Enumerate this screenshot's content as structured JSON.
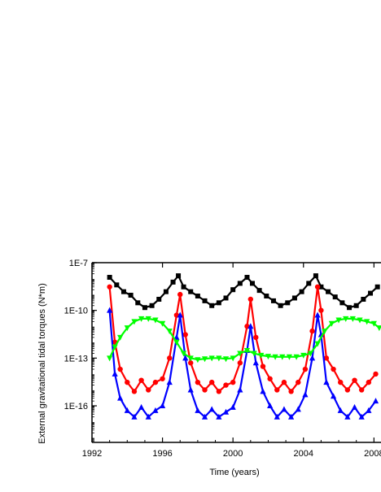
{
  "chart_data": {
    "type": "scatter",
    "xlabel": "Time (years)",
    "ylabel": "External gravitational tidal torques (N*m)",
    "xlim": [
      1992,
      2008.4
    ],
    "ylim_log10": [
      -18.3,
      -7
    ],
    "y_scale": "log",
    "x_ticks": [
      1992,
      1996,
      2000,
      2004,
      2008
    ],
    "x_tick_labels": [
      "1992",
      "1996",
      "2000",
      "2004",
      "2008"
    ],
    "y_ticks": [
      1e-16,
      1e-13,
      1e-10,
      1e-07
    ],
    "y_tick_labels": [
      "1E-16",
      "1E-13",
      "1E-10",
      "1E-7"
    ],
    "grid": false,
    "legend": "none",
    "series": [
      {
        "color": "#000000",
        "marker": "square",
        "x": [
          1993.0,
          1993.4,
          1993.8,
          1994.2,
          1994.6,
          1995.0,
          1995.4,
          1995.8,
          1996.2,
          1996.6,
          1996.9,
          1997.2,
          1997.6,
          1998.0,
          1998.4,
          1998.8,
          1999.2,
          1999.6,
          2000.0,
          2000.4,
          2000.8,
          2001.1,
          2001.5,
          2001.9,
          2002.3,
          2002.7,
          2003.1,
          2003.5,
          2003.9,
          2004.3,
          2004.7,
          2005.0,
          2005.4,
          2005.8,
          2006.2,
          2006.6,
          2007.0,
          2007.4,
          2007.8,
          2008.2
        ],
        "y": [
          1.2e-08,
          4e-09,
          1.5e-09,
          9e-10,
          3e-10,
          1.5e-10,
          2e-10,
          5e-10,
          1.5e-09,
          6e-09,
          1.5e-08,
          3e-09,
          1.5e-09,
          8e-10,
          4e-10,
          2e-10,
          3e-10,
          6e-10,
          2e-09,
          5e-09,
          1.2e-08,
          5e-09,
          1.8e-09,
          8e-10,
          4e-10,
          2e-10,
          3e-10,
          6e-10,
          1.5e-09,
          5e-09,
          1.5e-08,
          3e-09,
          1.5e-09,
          7e-10,
          3e-10,
          1.5e-10,
          2e-10,
          5e-10,
          1.2e-09,
          3e-09
        ]
      },
      {
        "color": "#ff0000",
        "marker": "circle",
        "x": [
          1993.0,
          1993.3,
          1993.6,
          1994.0,
          1994.4,
          1994.8,
          1995.2,
          1995.6,
          1996.0,
          1996.4,
          1996.8,
          1997.0,
          1997.3,
          1997.6,
          1998.0,
          1998.4,
          1998.8,
          1999.2,
          1999.6,
          2000.0,
          2000.4,
          2000.8,
          2001.0,
          2001.3,
          2001.7,
          2002.1,
          2002.5,
          2002.9,
          2003.3,
          2003.7,
          2004.1,
          2004.5,
          2004.8,
          2005.0,
          2005.3,
          2005.7,
          2006.1,
          2006.5,
          2006.9,
          2007.3,
          2007.7,
          2008.1
        ],
        "y": [
          3e-09,
          1e-12,
          2e-14,
          3e-15,
          8e-16,
          4e-15,
          1e-15,
          3e-15,
          5e-15,
          1e-13,
          5e-11,
          1e-09,
          3e-12,
          5e-14,
          3e-15,
          1e-15,
          3e-15,
          8e-16,
          2e-15,
          3e-15,
          5e-14,
          1e-11,
          5e-10,
          2e-12,
          3e-14,
          5e-15,
          1e-15,
          3e-15,
          8e-16,
          3e-15,
          2e-14,
          5e-12,
          3e-09,
          1e-10,
          1e-13,
          2e-14,
          3e-15,
          1e-15,
          4e-15,
          1e-15,
          3e-15,
          1e-14
        ]
      },
      {
        "color": "#0000ff",
        "marker": "triangle",
        "x": [
          1993.0,
          1993.3,
          1993.6,
          1994.0,
          1994.4,
          1994.8,
          1995.2,
          1995.6,
          1996.0,
          1996.4,
          1996.8,
          1997.0,
          1997.3,
          1997.6,
          1998.0,
          1998.4,
          1998.8,
          1999.2,
          1999.6,
          2000.0,
          2000.4,
          2000.8,
          2001.0,
          2001.3,
          2001.7,
          2002.1,
          2002.5,
          2002.9,
          2003.3,
          2003.7,
          2004.1,
          2004.5,
          2004.8,
          2005.0,
          2005.3,
          2005.7,
          2006.1,
          2006.5,
          2006.9,
          2007.3,
          2007.7,
          2008.1
        ],
        "y": [
          1e-10,
          1e-14,
          3e-16,
          5e-17,
          2e-17,
          8e-17,
          2e-17,
          5e-17,
          1e-16,
          3e-15,
          2e-12,
          5e-11,
          1e-13,
          1e-15,
          5e-17,
          2e-17,
          6e-17,
          2e-17,
          4e-17,
          8e-17,
          1e-15,
          3e-13,
          1e-11,
          5e-14,
          8e-16,
          1e-16,
          2e-17,
          6e-17,
          2e-17,
          6e-17,
          5e-16,
          1e-13,
          5e-11,
          3e-12,
          3e-15,
          4e-16,
          5e-17,
          2e-17,
          8e-17,
          2e-17,
          5e-17,
          2e-16
        ]
      },
      {
        "color": "#00ff00",
        "marker": "triangle-down",
        "x": [
          1993.0,
          1993.3,
          1993.6,
          1994.0,
          1994.4,
          1994.8,
          1995.2,
          1995.6,
          1996.0,
          1996.4,
          1996.8,
          1997.2,
          1997.6,
          1998.0,
          1998.4,
          1998.8,
          1999.2,
          1999.6,
          2000.0,
          2000.4,
          2000.8,
          2001.2,
          2001.6,
          2002.0,
          2002.4,
          2002.8,
          2003.2,
          2003.6,
          2004.0,
          2004.4,
          2004.8,
          2005.2,
          2005.6,
          2006.0,
          2006.4,
          2006.8,
          2007.2,
          2007.6,
          2008.0,
          2008.3
        ],
        "y": [
          1e-13,
          5e-13,
          2e-12,
          8e-12,
          2e-11,
          3e-11,
          3e-11,
          2.5e-11,
          1.5e-11,
          5e-12,
          1e-12,
          2e-13,
          1e-13,
          8e-14,
          9e-14,
          1e-13,
          1e-13,
          9e-14,
          1e-13,
          2e-13,
          3e-13,
          2e-13,
          1.5e-13,
          1.3e-13,
          1.2e-13,
          1.2e-13,
          1.2e-13,
          1.2e-13,
          1.5e-13,
          2e-13,
          8e-13,
          5e-12,
          1.5e-11,
          2.5e-11,
          3e-11,
          3e-11,
          2.5e-11,
          2e-11,
          1.5e-11,
          8e-12
        ]
      }
    ]
  }
}
